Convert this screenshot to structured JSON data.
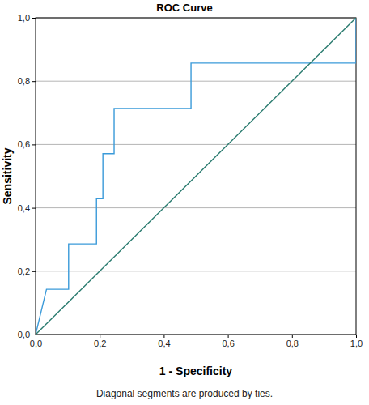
{
  "chart_data": {
    "type": "line",
    "title": "ROC Curve",
    "x_label": "1 - Specificity",
    "y_label": "Sensitivity",
    "annotation": "Diagonal segments are produced by ties.",
    "xlim": [
      0,
      1
    ],
    "ylim": [
      0,
      1
    ],
    "xticks": [
      {
        "value": 0,
        "label": "0,0"
      },
      {
        "value": 0.2,
        "label": "0,2"
      },
      {
        "value": 0.4,
        "label": "0,4"
      },
      {
        "value": 0.6,
        "label": "0,6"
      },
      {
        "value": 0.8,
        "label": "0,8"
      },
      {
        "value": 1,
        "label": "1,0"
      }
    ],
    "yticks": [
      {
        "value": 0,
        "label": "0,0"
      },
      {
        "value": 0.2,
        "label": "0,2"
      },
      {
        "value": 0.4,
        "label": "0,4"
      },
      {
        "value": 0.6,
        "label": "0,6"
      },
      {
        "value": 0.8,
        "label": "0,8"
      },
      {
        "value": 1,
        "label": "1,0"
      }
    ],
    "grid": true,
    "series": [
      {
        "color": "#3a9ad9",
        "line_style": "solid",
        "x": [
          0,
          0.034,
          0.103,
          0.103,
          0.19,
          0.19,
          0.21,
          0.21,
          0.245,
          0.245,
          0.485,
          0.485,
          1,
          1
        ],
        "values": [
          0,
          0.143,
          0.143,
          0.286,
          0.286,
          0.429,
          0.429,
          0.571,
          0.571,
          0.714,
          0.714,
          0.857,
          0.857,
          1
        ]
      },
      {
        "color": "#2a7b6f",
        "line_style": "solid",
        "x": [
          0,
          1
        ],
        "values": [
          0,
          1
        ]
      }
    ]
  }
}
